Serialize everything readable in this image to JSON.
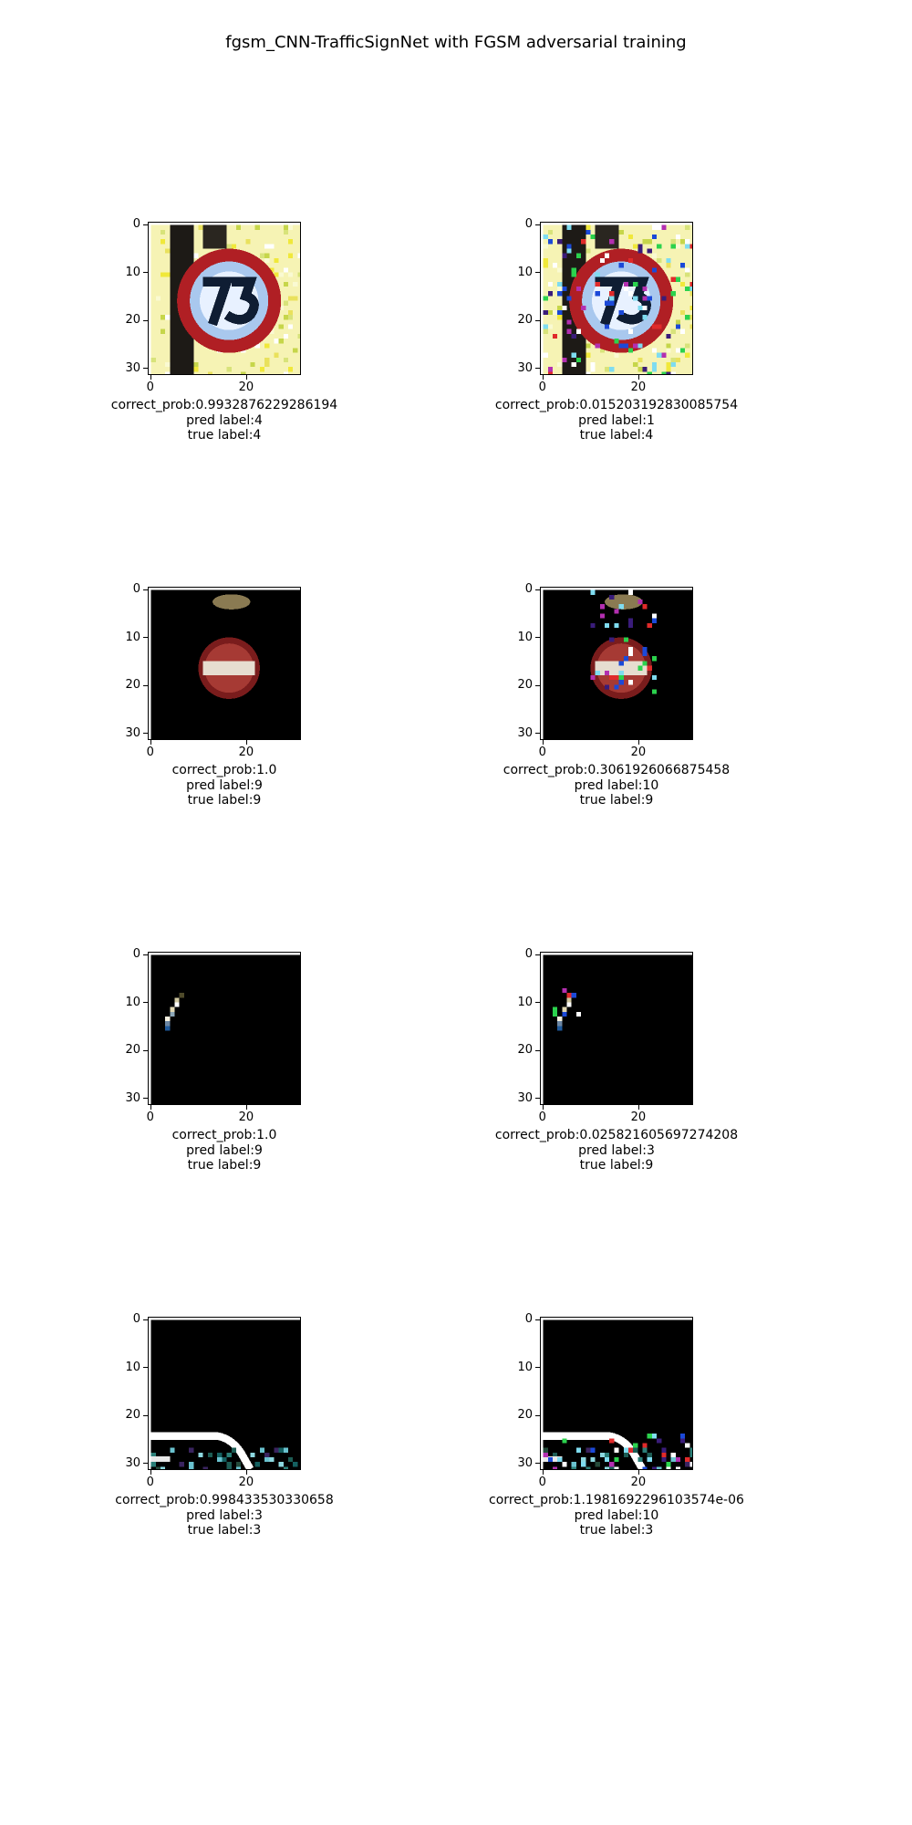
{
  "chart_data": {
    "type": "image-grid",
    "title": "fgsm_CNN-TrafficSignNet with FGSM adversarial training",
    "axis": {
      "xticks": [
        "0",
        "20"
      ],
      "yticks": [
        "0",
        "10",
        "20",
        "30"
      ],
      "xtick_values": [
        0,
        20
      ],
      "ytick_values": [
        0,
        10,
        20,
        30
      ],
      "image_size": 32
    },
    "panels": [
      {
        "id": "r1-original",
        "scene": "sign-speed",
        "correct_prob": "correct_prob:0.9932876229286194",
        "pred": "pred label:4",
        "true": "true label:4"
      },
      {
        "id": "r1-adversarial",
        "scene": "sign-speed-noisy",
        "correct_prob": "correct_prob:0.015203192830085754",
        "pred": "pred label:1",
        "true": "true label:4"
      },
      {
        "id": "r2-original",
        "scene": "sign-noentry",
        "correct_prob": "correct_prob:1.0",
        "pred": "pred label:9",
        "true": "true label:9"
      },
      {
        "id": "r2-adversarial",
        "scene": "sign-noentry-noisy",
        "correct_prob": "correct_prob:0.3061926066875458",
        "pred": "pred label:10",
        "true": "true label:9"
      },
      {
        "id": "r3-original",
        "scene": "streak",
        "correct_prob": "correct_prob:1.0",
        "pred": "pred label:9",
        "true": "true label:9"
      },
      {
        "id": "r3-adversarial",
        "scene": "streak-noisy",
        "correct_prob": "correct_prob:0.025821605697274208",
        "pred": "pred label:3",
        "true": "true label:9"
      },
      {
        "id": "r4-original",
        "scene": "curve",
        "correct_prob": "correct_prob:0.998433530330658",
        "pred": "pred label:3",
        "true": "true label:3"
      },
      {
        "id": "r4-adversarial",
        "scene": "curve-noisy",
        "correct_prob": "correct_prob:1.1981692296103574e-06",
        "pred": "pred label:10",
        "true": "true label:3"
      }
    ]
  }
}
